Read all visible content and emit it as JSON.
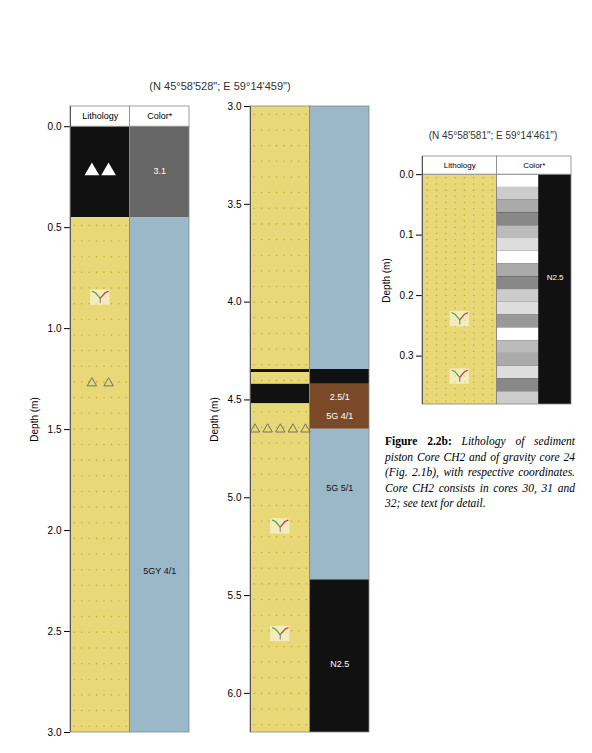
{
  "chart_data": [
    {
      "type": "strip_log",
      "title": "(N 45°58'528\"; E 59°14'459\")",
      "headers": [
        "Lithology",
        "Color*"
      ],
      "ylabel": "Depth (m)",
      "ylim": [
        3.0,
        -0.1
      ],
      "yticks": [
        {
          "value": 0,
          "label": "0.0"
        },
        0.5,
        {
          "value": 1.0,
          "label": "1.0"
        },
        1.5,
        {
          "value": 2.0,
          "label": "2.0"
        },
        2.5,
        {
          "value": 3.0,
          "label": "3.0"
        }
      ],
      "lithology_layers": [
        {
          "from": 0,
          "to": 0.45,
          "color": "#111111"
        },
        {
          "from": 0.45,
          "to": 3.0,
          "color": "#e8d878",
          "marker": "dots"
        }
      ],
      "color_layers": [
        {
          "from": 0,
          "to": 0.45,
          "color": "#666666"
        },
        {
          "from": 0.45,
          "to": 3.0,
          "color": "#9ab8c8"
        }
      ],
      "symbols": [
        {
          "depth": 0.22,
          "marker": "filled_triangles"
        },
        {
          "depth": 0.85,
          "marker": "foram"
        },
        {
          "depth": 1.27,
          "marker": "open_triangles"
        }
      ],
      "annotations": [
        {
          "text": "3.1",
          "depth": 0.22
        },
        {
          "text": "5GY 4/1",
          "depth": 2.2
        }
      ]
    },
    {
      "type": "strip_log",
      "ylabel": "Depth (m)",
      "ylim": [
        6.2,
        3.0
      ],
      "yticks": [
        {
          "value": 3.0,
          "label": "3.0"
        },
        3.5,
        {
          "value": 4.0,
          "label": "4.0"
        },
        4.5,
        {
          "value": 5.0,
          "label": "5.0"
        },
        5.5,
        {
          "value": 6.0,
          "label": "6.0"
        }
      ],
      "lithology_layers": [
        {
          "from": 3.0,
          "to": 4.42,
          "color": "#e8d878",
          "marker": "dots"
        },
        {
          "from": 4.42,
          "to": 4.52,
          "color": "#111111"
        },
        {
          "from": 4.52,
          "to": 6.2,
          "color": "#e8d878",
          "marker": "dots"
        }
      ],
      "color_layers": [
        {
          "from": 3.0,
          "to": 4.35,
          "color": "#9ab8c8"
        },
        {
          "from": 4.35,
          "to": 4.42,
          "color": "#111111"
        },
        {
          "from": 4.42,
          "to": 4.65,
          "color": "#7a4a28"
        },
        {
          "from": 4.65,
          "to": 5.42,
          "color": "#9ab8c8"
        },
        {
          "from": 5.42,
          "to": 6.2,
          "color": "#111111"
        }
      ],
      "boundaries": [
        4.35
      ],
      "symbols": [
        {
          "depth": 4.65,
          "marker": "open_triangle_row"
        },
        {
          "depth": 5.15,
          "marker": "foram"
        },
        {
          "depth": 5.7,
          "marker": "foram"
        }
      ],
      "annotations": [
        {
          "text": "2.5/1",
          "depth": 4.485
        },
        {
          "text": "5G 4/1",
          "depth": 4.585
        },
        {
          "text": "5G 5/1",
          "depth": 4.95
        },
        {
          "text": "N2.5",
          "depth": 5.85
        }
      ]
    },
    {
      "type": "strip_log",
      "title": "(N 45°58'581\"; E 59°14'461\")",
      "headers": [
        "Lithology",
        "Color*"
      ],
      "ylabel": "Depth (m)",
      "ylim": [
        0.38,
        -0.03
      ],
      "yticks": [
        {
          "value": 0,
          "label": "0.0"
        },
        0.1,
        0.2,
        0.3
      ],
      "lithology_layers": [
        {
          "from": 0,
          "to": 0.38,
          "color": "#e8d878",
          "marker": "dots"
        }
      ],
      "color_layers": [
        {
          "from": 0,
          "to": 0.38,
          "color": "#111111",
          "marker": "striped"
        }
      ],
      "symbols": [
        {
          "depth": 0.24,
          "marker": "foram"
        },
        {
          "depth": 0.335,
          "marker": "foram"
        }
      ],
      "annotations": [
        {
          "text": "N2.5",
          "depth": 0.17
        }
      ],
      "caption": {
        "bold": "Figure 2.2b:",
        "text": " Lithology of sediment piston Core CH2 and of gravity core 24 (Fig. 2.1b), with respective coordinates. Core CH2 consists in cores 30, 31 and 32; see text for detail."
      }
    }
  ]
}
